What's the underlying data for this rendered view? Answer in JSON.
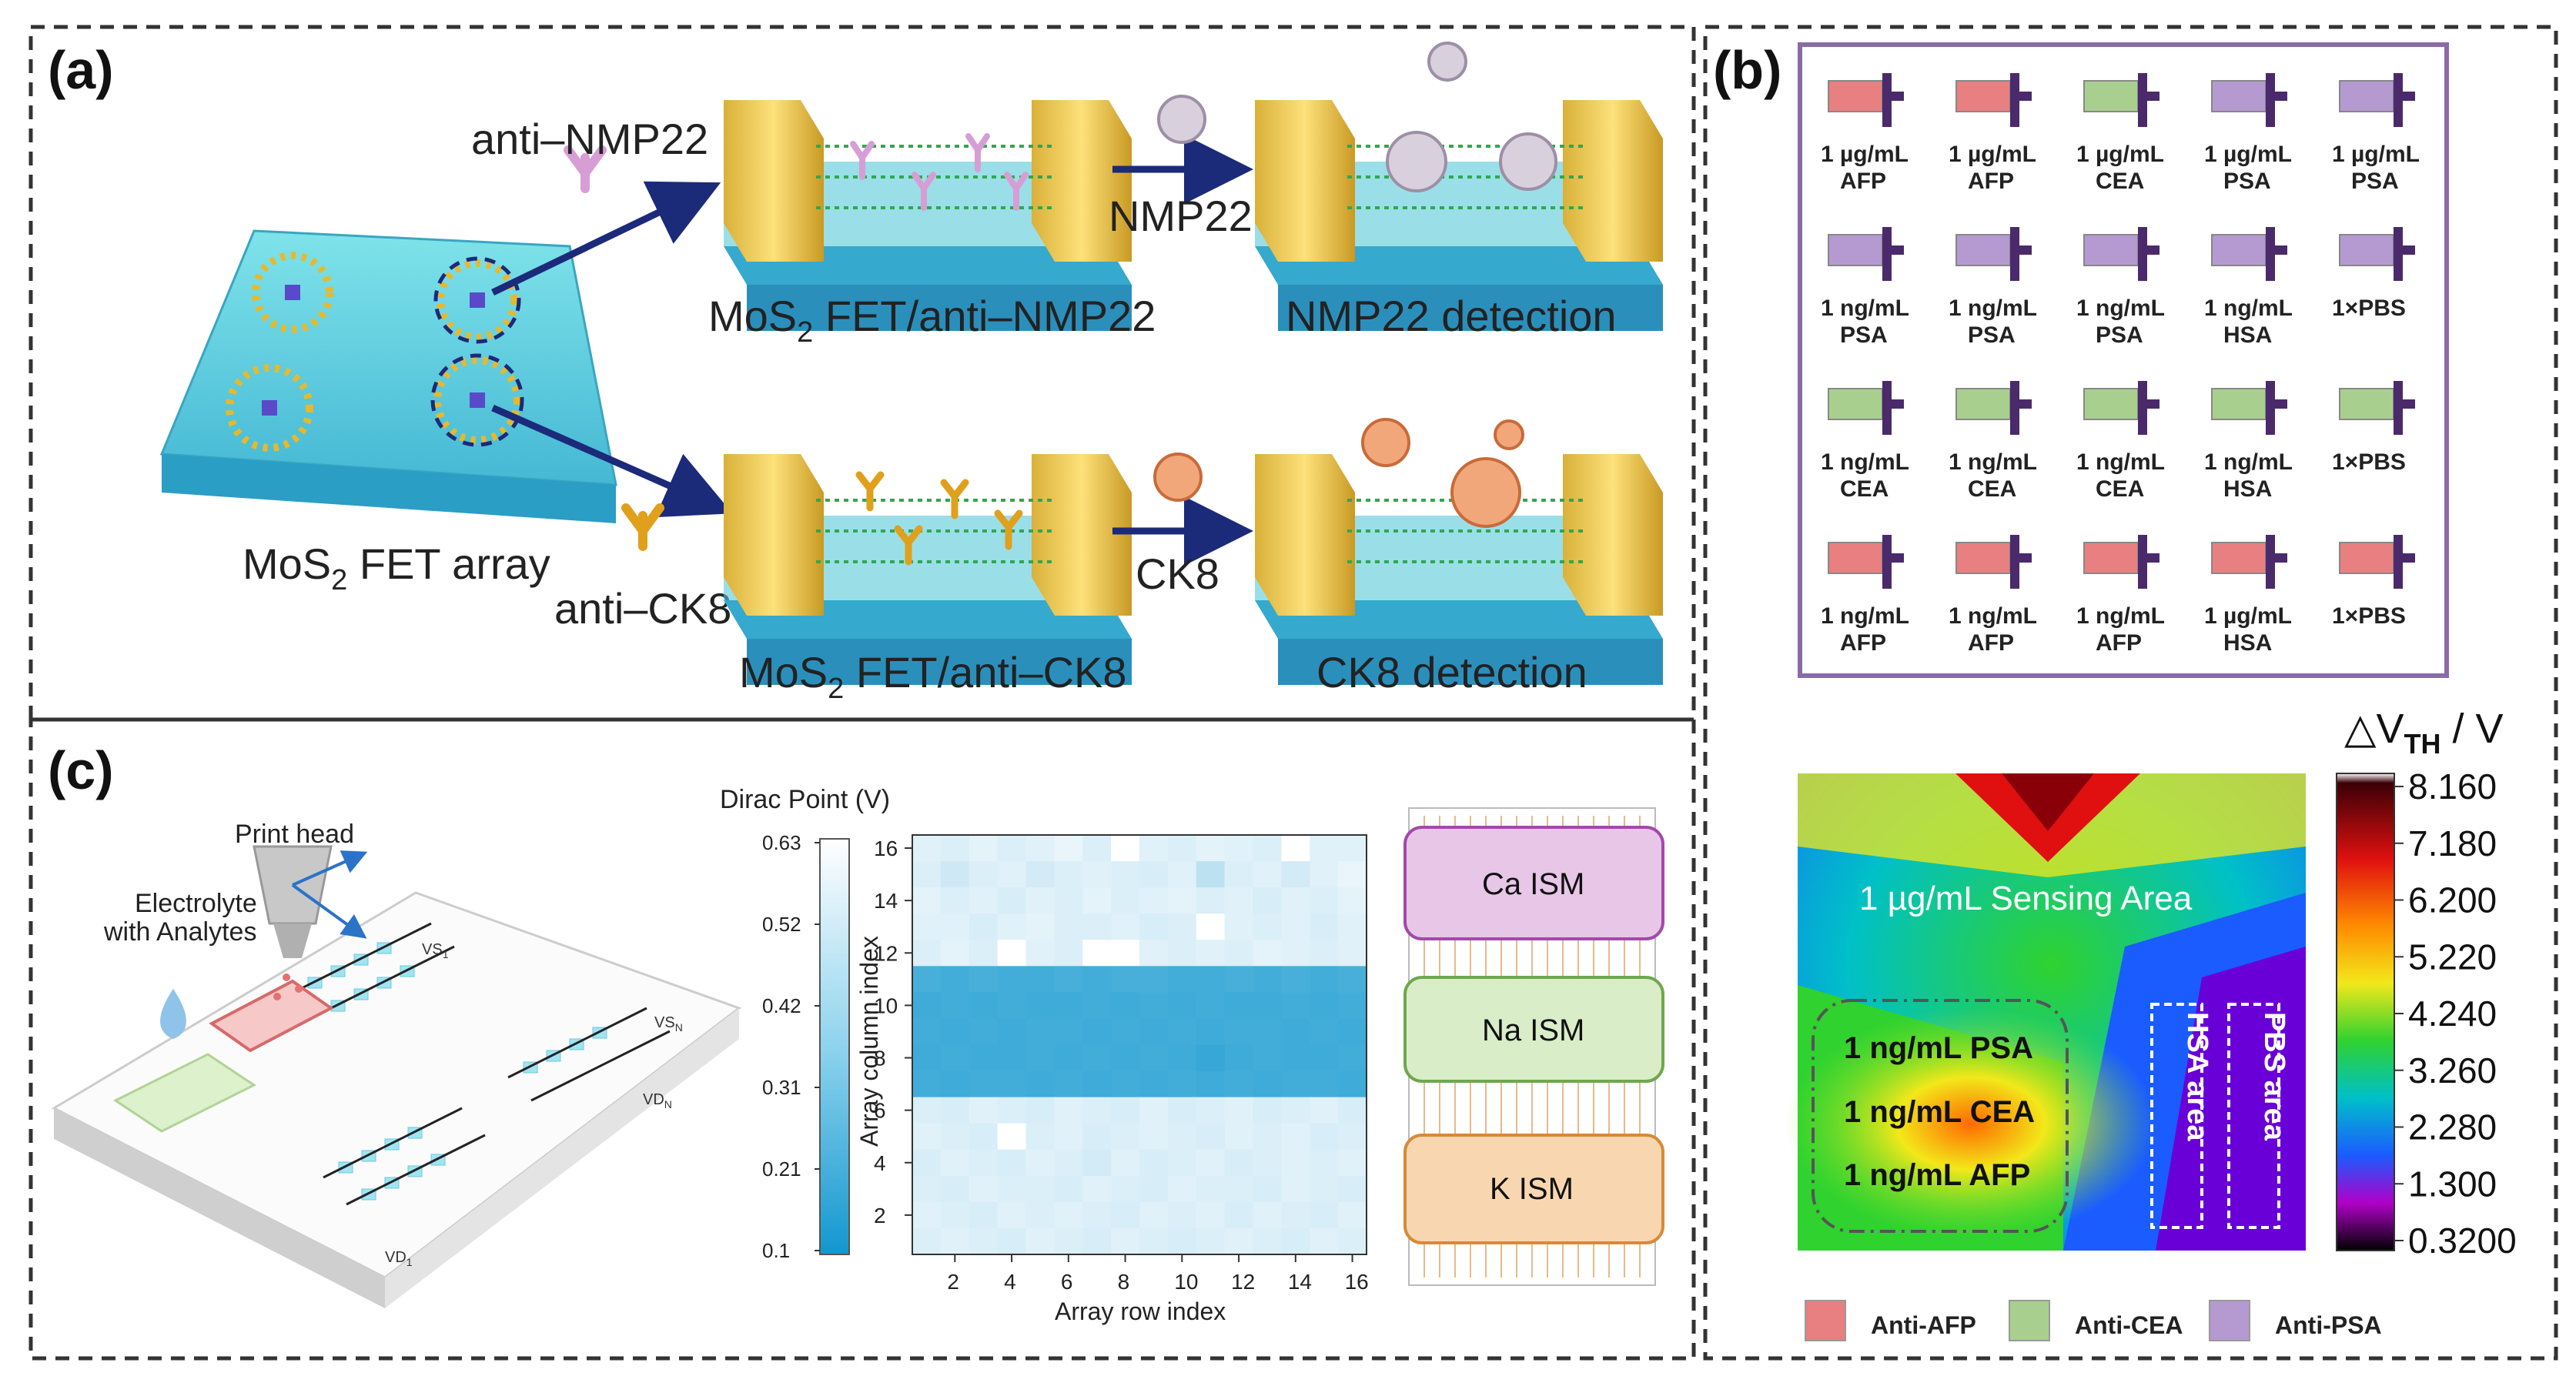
{
  "panels": {
    "a": {
      "label": "(a)",
      "array_label_pre": "MoS",
      "array_label_post": " FET array",
      "sub2": "2",
      "anti_nmp22": "anti–NMP22",
      "anti_ck8": "anti–CK8",
      "fet_nmp22_pre": "MoS",
      "fet_nmp22_post": " FET/anti–NMP22",
      "fet_ck8_pre": "MoS",
      "fet_ck8_post": " FET/anti–CK8",
      "nmp22": "NMP22",
      "ck8": "CK8",
      "nmp22_detection": "NMP22 detection",
      "ck8_detection": "CK8 detection"
    },
    "b": {
      "label": "(b)",
      "grid": [
        [
          {
            "conc": "1 µg/mL",
            "target": "AFP",
            "color": "#e87f80"
          },
          {
            "conc": "1 µg/mL",
            "target": "AFP",
            "color": "#e87f80"
          },
          {
            "conc": "1 µg/mL",
            "target": "CEA",
            "color": "#a9cf8f"
          },
          {
            "conc": "1 µg/mL",
            "target": "PSA",
            "color": "#b49ad1"
          },
          {
            "conc": "1 µg/mL",
            "target": "PSA",
            "color": "#b49ad1"
          }
        ],
        [
          {
            "conc": "1 ng/mL",
            "target": "PSA",
            "color": "#b49ad1"
          },
          {
            "conc": "1 ng/mL",
            "target": "PSA",
            "color": "#b49ad1"
          },
          {
            "conc": "1 ng/mL",
            "target": "PSA",
            "color": "#b49ad1"
          },
          {
            "conc": "1 ng/mL",
            "target": "HSA",
            "color": "#b49ad1"
          },
          {
            "conc": "1×PBS",
            "target": "",
            "color": "#b49ad1"
          }
        ],
        [
          {
            "conc": "1 ng/mL",
            "target": "CEA",
            "color": "#a9cf8f"
          },
          {
            "conc": "1 ng/mL",
            "target": "CEA",
            "color": "#a9cf8f"
          },
          {
            "conc": "1 ng/mL",
            "target": "CEA",
            "color": "#a9cf8f"
          },
          {
            "conc": "1 ng/mL",
            "target": "HSA",
            "color": "#a9cf8f"
          },
          {
            "conc": "1×PBS",
            "target": "",
            "color": "#a9cf8f"
          }
        ],
        [
          {
            "conc": "1 ng/mL",
            "target": "AFP",
            "color": "#e87f80"
          },
          {
            "conc": "1 ng/mL",
            "target": "AFP",
            "color": "#e87f80"
          },
          {
            "conc": "1 ng/mL",
            "target": "AFP",
            "color": "#e87f80"
          },
          {
            "conc": "1 µg/mL",
            "target": "HSA",
            "color": "#e87f80"
          },
          {
            "conc": "1×PBS",
            "target": "",
            "color": "#e87f80"
          }
        ]
      ],
      "colorbar_title_pre": "△V",
      "colorbar_title_sub": "TH",
      "colorbar_title_post": " / V",
      "colorbar_ticks": [
        "8.160",
        "7.180",
        "6.200",
        "5.220",
        "4.240",
        "3.260",
        "2.280",
        "1.300",
        "0.3200"
      ],
      "map_labels": {
        "sensing_area": "1 µg/mL Sensing Area",
        "psa": "1 ng/mL PSA",
        "cea": "1 ng/mL CEA",
        "afp": "1 ng/mL AFP",
        "hsa": "HSA area",
        "pbs": "PBS area"
      },
      "legend": [
        {
          "label": "Anti-AFP",
          "color": "#e87f80"
        },
        {
          "label": "Anti-CEA",
          "color": "#a9cf8f"
        },
        {
          "label": "Anti-PSA",
          "color": "#b49ad1"
        }
      ]
    },
    "c": {
      "label": "(c)",
      "print_head": "Print head",
      "electrolyte_line1": "Electrolyte",
      "electrolyte_line2": "with Analytes",
      "vs1": "VS",
      "vsn": "VS",
      "vdn": "VD",
      "vd1": "VD",
      "sub1": "1",
      "subn": "N",
      "ism": [
        "Ca ISM",
        "Na ISM",
        "K ISM"
      ]
    }
  },
  "chart_data": {
    "type": "heatmap",
    "title": "Dirac Point (V)",
    "xlabel": "Array row index",
    "ylabel": "Array column index",
    "xlim": [
      1,
      16
    ],
    "ylim": [
      1,
      16
    ],
    "x_ticks": [
      "2",
      "4",
      "6",
      "8",
      "10",
      "12",
      "14",
      "16"
    ],
    "y_ticks": [
      "2",
      "4",
      "6",
      "8",
      "10",
      "12",
      "14",
      "16"
    ],
    "colorbar_ticks": [
      "0.63",
      "0.52",
      "0.42",
      "0.31",
      "0.21",
      "0.1"
    ],
    "colorbar_range": [
      0.1,
      0.63
    ],
    "rows_top_to_bottom": [
      [
        0.56,
        0.55,
        0.57,
        0.55,
        0.56,
        0.58,
        0.55,
        0.63,
        0.56,
        0.55,
        0.57,
        0.56,
        0.55,
        0.63,
        0.56,
        0.56
      ],
      [
        0.55,
        0.52,
        0.55,
        0.56,
        0.53,
        0.55,
        0.56,
        0.55,
        0.54,
        0.56,
        0.48,
        0.55,
        0.56,
        0.53,
        0.56,
        0.58
      ],
      [
        0.57,
        0.55,
        0.56,
        0.54,
        0.56,
        0.55,
        0.57,
        0.55,
        0.56,
        0.57,
        0.55,
        0.56,
        0.54,
        0.56,
        0.55,
        0.57
      ],
      [
        0.56,
        0.56,
        0.54,
        0.56,
        0.57,
        0.55,
        0.55,
        0.56,
        0.54,
        0.55,
        0.63,
        0.56,
        0.55,
        0.56,
        0.54,
        0.56
      ],
      [
        0.55,
        0.57,
        0.55,
        0.63,
        0.56,
        0.55,
        0.63,
        0.63,
        0.56,
        0.55,
        0.56,
        0.55,
        0.57,
        0.56,
        0.55,
        0.56
      ],
      [
        0.22,
        0.21,
        0.22,
        0.21,
        0.21,
        0.22,
        0.21,
        0.22,
        0.22,
        0.21,
        0.21,
        0.22,
        0.21,
        0.22,
        0.21,
        0.22
      ],
      [
        0.2,
        0.21,
        0.2,
        0.21,
        0.2,
        0.2,
        0.21,
        0.2,
        0.21,
        0.2,
        0.21,
        0.2,
        0.2,
        0.21,
        0.2,
        0.21
      ],
      [
        0.21,
        0.2,
        0.21,
        0.2,
        0.21,
        0.21,
        0.2,
        0.21,
        0.2,
        0.21,
        0.2,
        0.21,
        0.21,
        0.2,
        0.21,
        0.2
      ],
      [
        0.2,
        0.21,
        0.2,
        0.2,
        0.21,
        0.2,
        0.21,
        0.2,
        0.21,
        0.2,
        0.18,
        0.2,
        0.21,
        0.2,
        0.2,
        0.21
      ],
      [
        0.21,
        0.2,
        0.21,
        0.21,
        0.2,
        0.21,
        0.2,
        0.21,
        0.2,
        0.21,
        0.2,
        0.21,
        0.2,
        0.21,
        0.21,
        0.2
      ],
      [
        0.55,
        0.54,
        0.56,
        0.55,
        0.54,
        0.56,
        0.55,
        0.54,
        0.56,
        0.54,
        0.55,
        0.56,
        0.54,
        0.55,
        0.56,
        0.54
      ],
      [
        0.56,
        0.55,
        0.54,
        0.63,
        0.55,
        0.56,
        0.54,
        0.55,
        0.56,
        0.55,
        0.54,
        0.56,
        0.55,
        0.56,
        0.54,
        0.55
      ],
      [
        0.54,
        0.56,
        0.55,
        0.54,
        0.56,
        0.55,
        0.53,
        0.56,
        0.54,
        0.55,
        0.56,
        0.54,
        0.55,
        0.56,
        0.55,
        0.56
      ],
      [
        0.55,
        0.54,
        0.56,
        0.55,
        0.55,
        0.54,
        0.56,
        0.55,
        0.54,
        0.56,
        0.55,
        0.55,
        0.54,
        0.56,
        0.55,
        0.54
      ],
      [
        0.56,
        0.55,
        0.54,
        0.56,
        0.55,
        0.56,
        0.55,
        0.54,
        0.56,
        0.55,
        0.56,
        0.54,
        0.56,
        0.55,
        0.54,
        0.56
      ],
      [
        0.55,
        0.56,
        0.55,
        0.54,
        0.56,
        0.55,
        0.54,
        0.56,
        0.55,
        0.54,
        0.55,
        0.56,
        0.55,
        0.54,
        0.56,
        0.55
      ]
    ]
  }
}
